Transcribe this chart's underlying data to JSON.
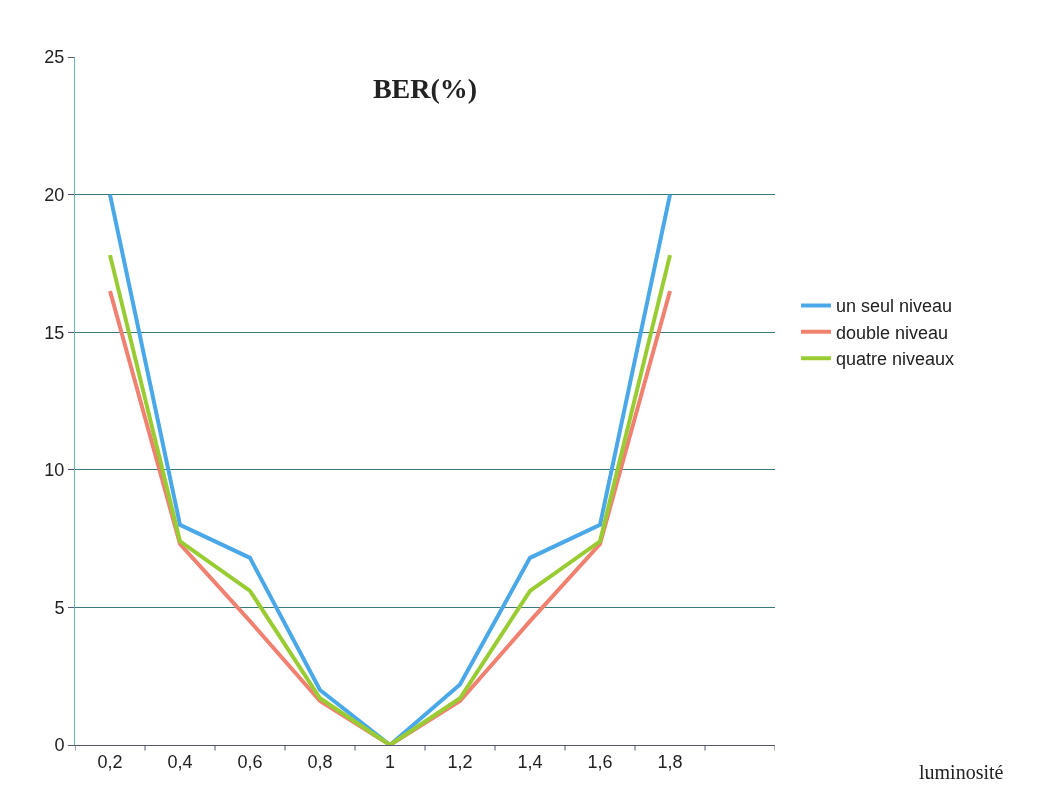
{
  "chart_data": {
    "type": "line",
    "title": "BER(%)",
    "annotations": [
      "luminosité"
    ],
    "categories": [
      "0,2",
      "0,4",
      "0,6",
      "0,8",
      "1",
      "1,2",
      "1,4",
      "1,6",
      "1,8",
      null
    ],
    "series": [
      {
        "name": "un seul niveau",
        "color": "#4aa8e8",
        "values": [
          20,
          8,
          6.8,
          2,
          0,
          2.2,
          6.8,
          8,
          20,
          null
        ]
      },
      {
        "name": "double niveau",
        "color": "#f08070",
        "values": [
          16.5,
          7.3,
          4.5,
          1.6,
          0,
          1.6,
          4.5,
          7.3,
          16.5,
          null
        ]
      },
      {
        "name": "quatre niveaux",
        "color": "#99cc33",
        "values": [
          17.8,
          7.4,
          5.6,
          1.7,
          0,
          1.7,
          5.6,
          7.4,
          17.8,
          null
        ]
      }
    ],
    "ylim": [
      0,
      25
    ],
    "yticks": [
      0,
      5,
      10,
      15,
      20,
      25
    ],
    "grid": "y",
    "legend": "right",
    "marker": "none",
    "line_style": "solid"
  }
}
